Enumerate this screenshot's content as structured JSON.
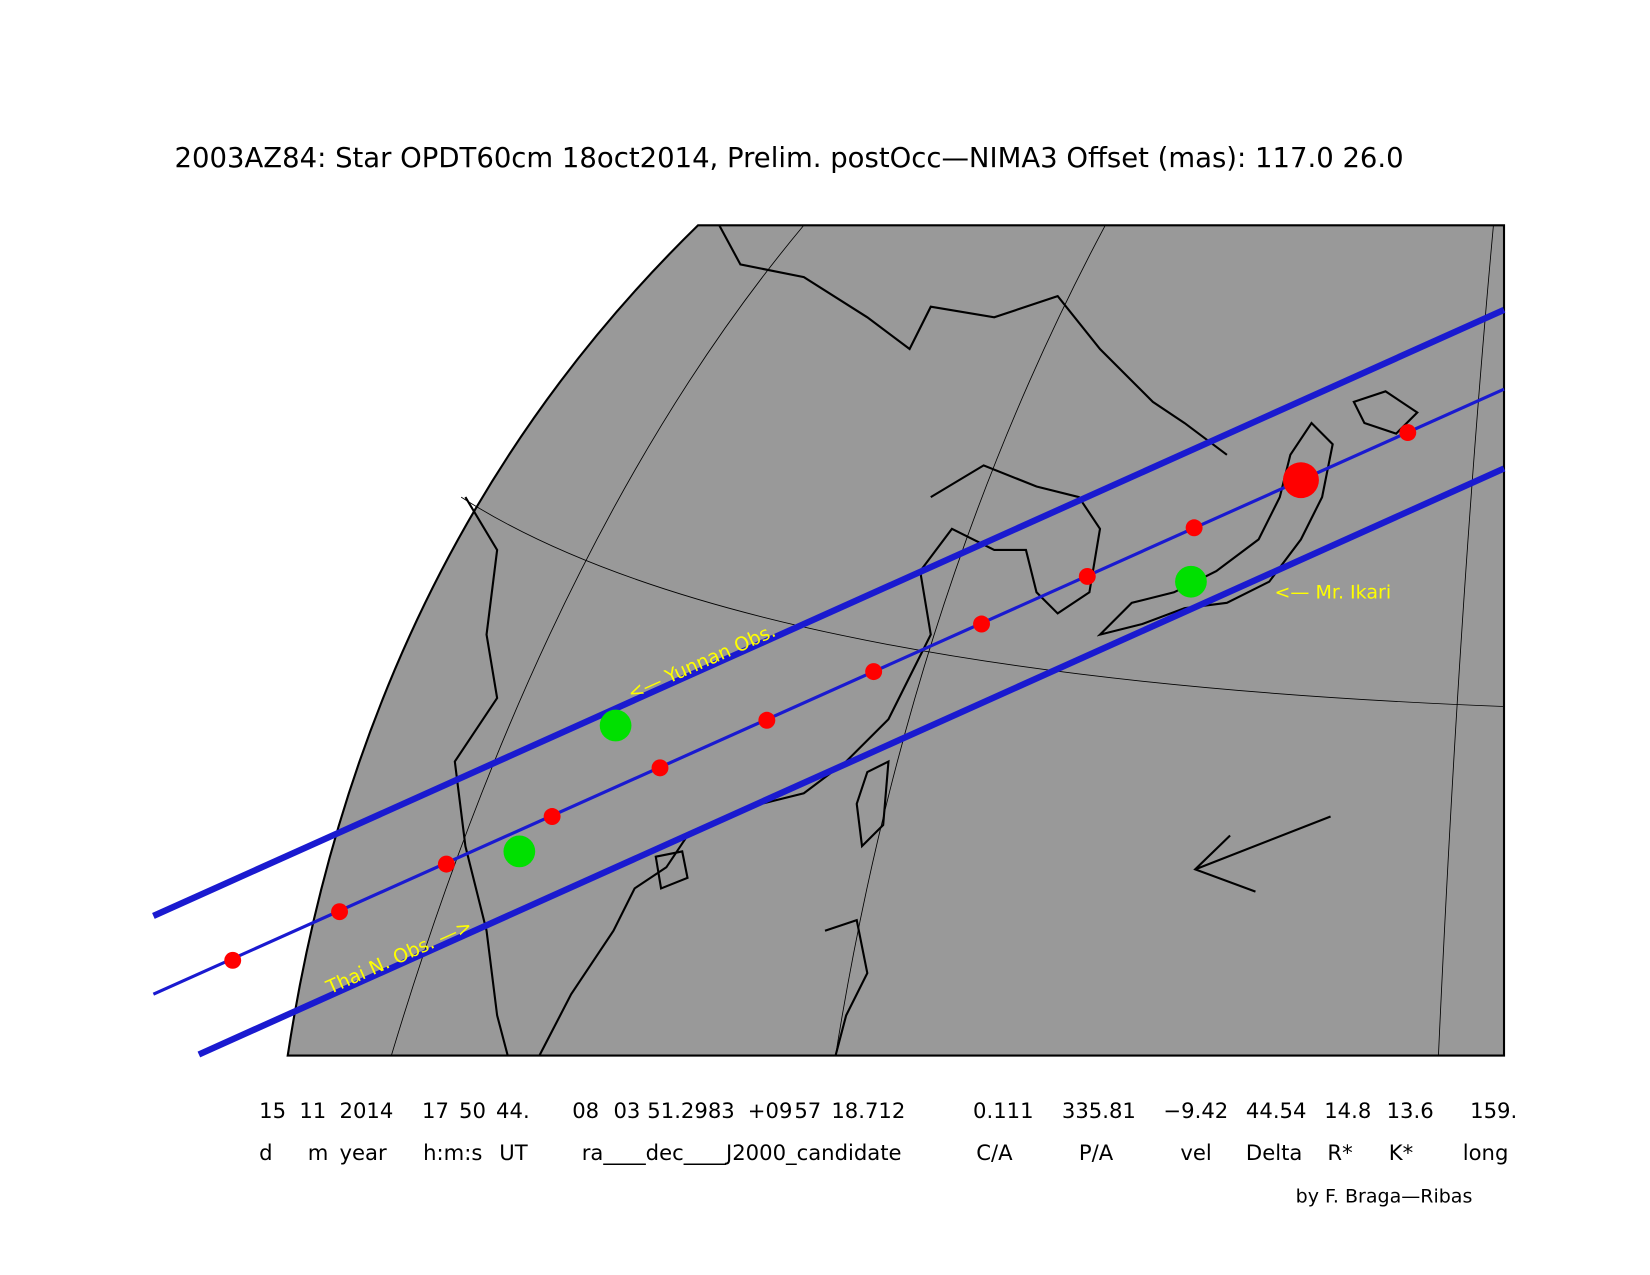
{
  "header": {
    "title": "2003AZ84: Star OPDT60cm 18oct2014, Prelim. postOcc—NIMA3 Offset (mas): 117.0   26.0"
  },
  "map": {
    "annotations": [
      "<— Yunnan Obs.",
      "Thai N. Obs. —>",
      "<— Mr. Ikari"
    ]
  },
  "footer": {
    "values": [
      "15",
      "11",
      "2014",
      "17",
      "50",
      "44.",
      "08",
      "03",
      "51.2983",
      "+09",
      "57",
      "18.712",
      "0.111",
      "335.81",
      "−9.42",
      "44.54",
      "14.8",
      "13.6",
      "159."
    ],
    "labels": [
      "d",
      "m",
      "year",
      "h:m:s",
      "UT",
      "ra____dec____J2000_candidate",
      "C/A",
      "P/A",
      "vel",
      "Delta",
      "R*",
      "K*",
      "long"
    ],
    "credit": "by F. Braga—Ribas"
  }
}
